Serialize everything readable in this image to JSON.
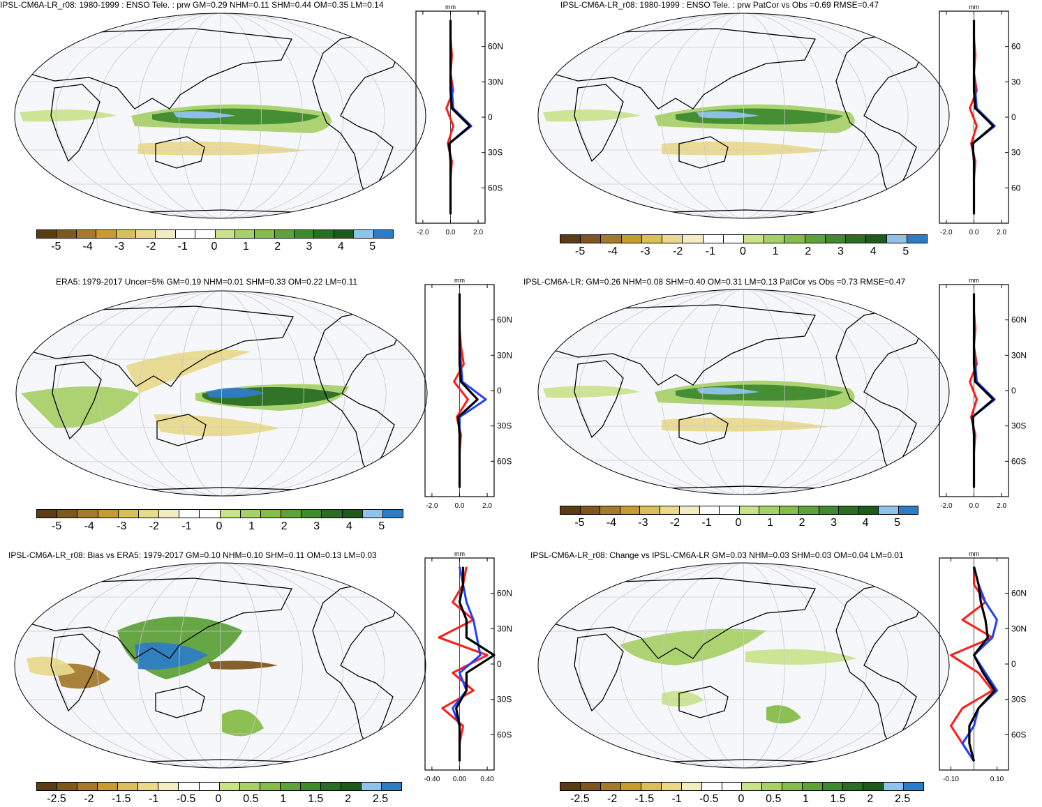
{
  "panels": [
    {
      "title": "IPSL-CM6A-LR_r08: 1980-1999 : ENSO Tele. : prw GM=0.29 NHM=0.11 SHM=0.44 OM=0.35 LM=0.14",
      "cbar_labels": [
        "-5",
        "-4",
        "-3",
        "-2",
        "-1",
        "0",
        "1",
        "2",
        "3",
        "4",
        "5"
      ],
      "zonal": {
        "unit": "mm",
        "lat_labels": [
          "60N",
          "30N",
          "0",
          "30S",
          "60S"
        ],
        "x_labels": [
          "-2.0",
          "0.0",
          "2.0"
        ]
      }
    },
    {
      "title": "IPSL-CM6A-LR_r08: 1980-1999 : ENSO Tele. : prw PatCor vs Obs =0.69 RMSE=0.47",
      "cbar_labels": [
        "-5",
        "-4",
        "-3",
        "-2",
        "-1",
        "0",
        "1",
        "2",
        "3",
        "4",
        "5"
      ],
      "zonal": {
        "unit": "mm",
        "lat_labels": [
          "60",
          "30",
          "0",
          "30",
          "60"
        ],
        "x_labels": [
          "-2.0",
          "0.0",
          "2.0"
        ]
      }
    },
    {
      "title": "ERA5: 1979-2017 Uncer=5% GM=0.19 NHM=0.01 SHM=0.33 OM=0.22 LM=0.11",
      "cbar_labels": [
        "-5",
        "-4",
        "-3",
        "-2",
        "-1",
        "0",
        "1",
        "2",
        "3",
        "4",
        "5"
      ],
      "zonal": {
        "unit": "mm",
        "lat_labels": [
          "60N",
          "30N",
          "0",
          "30S",
          "60S"
        ],
        "x_labels": [
          "-2.0",
          "0.0",
          "2.0"
        ]
      }
    },
    {
      "title": "IPSL-CM6A-LR: GM=0.26 NHM=0.08 SHM=0.40 OM=0.31 LM=0.13 PatCor vs Obs =0.73 RMSE=0.47",
      "cbar_labels": [
        "-5",
        "-4",
        "-3",
        "-2",
        "-1",
        "0",
        "1",
        "2",
        "3",
        "4",
        "5"
      ],
      "zonal": {
        "unit": "mm",
        "lat_labels": [
          "60N",
          "30N",
          "0",
          "30S",
          "60S"
        ],
        "x_labels": [
          "-2.0",
          "0.0",
          "2.0"
        ]
      }
    },
    {
      "title": "IPSL-CM6A-LR_r08: Bias vs ERA5: 1979-2017 GM=0.10 NHM=0.10 SHM=0.11 OM=0.13 LM=0.03",
      "cbar_labels": [
        "-2.5",
        "-2",
        "-1.5",
        "-1",
        "-0.5",
        "0",
        "0.5",
        "1",
        "1.5",
        "2",
        "2.5"
      ],
      "zonal": {
        "unit": "mm",
        "lat_labels": [
          "60N",
          "30N",
          "0",
          "30S",
          "60S"
        ],
        "x_labels": [
          "-0.40",
          "0.00",
          "0.40"
        ]
      }
    },
    {
      "title": "IPSL-CM6A-LR_r08: Change vs IPSL-CM6A-LR GM=0.03 NHM=0.03 SHM=0.03 OM=0.04 LM=0.01",
      "cbar_labels": [
        "-2.5",
        "-2",
        "-1.5",
        "-1",
        "-0.5",
        "0",
        "0.5",
        "1",
        "1.5",
        "2",
        "2.5"
      ],
      "zonal": {
        "unit": "mm",
        "lat_labels": [
          "60N",
          "30N",
          "0",
          "30S",
          "60S"
        ],
        "x_labels": [
          "-0.10",
          "0.10"
        ]
      }
    }
  ],
  "colors": {
    "palette": [
      "#5b3d14",
      "#7e5720",
      "#a57a2e",
      "#c79b2f",
      "#d9bf5a",
      "#e8d98e",
      "#f3ecc3",
      "#ffffff",
      "#ffffff",
      "#c9e38d",
      "#a8d06a",
      "#86bd4a",
      "#5fa13a",
      "#3f8a2f",
      "#2a6e24",
      "#1e5a1c",
      "#8fc3ec",
      "#2f7cc4"
    ],
    "ocean": "#f6f7fb",
    "land_line": "#000000",
    "grid": "#c8c8c8",
    "line_model": "#ff1a1a",
    "line_obs": "#1f3fff",
    "line_mean": "#000000"
  }
}
